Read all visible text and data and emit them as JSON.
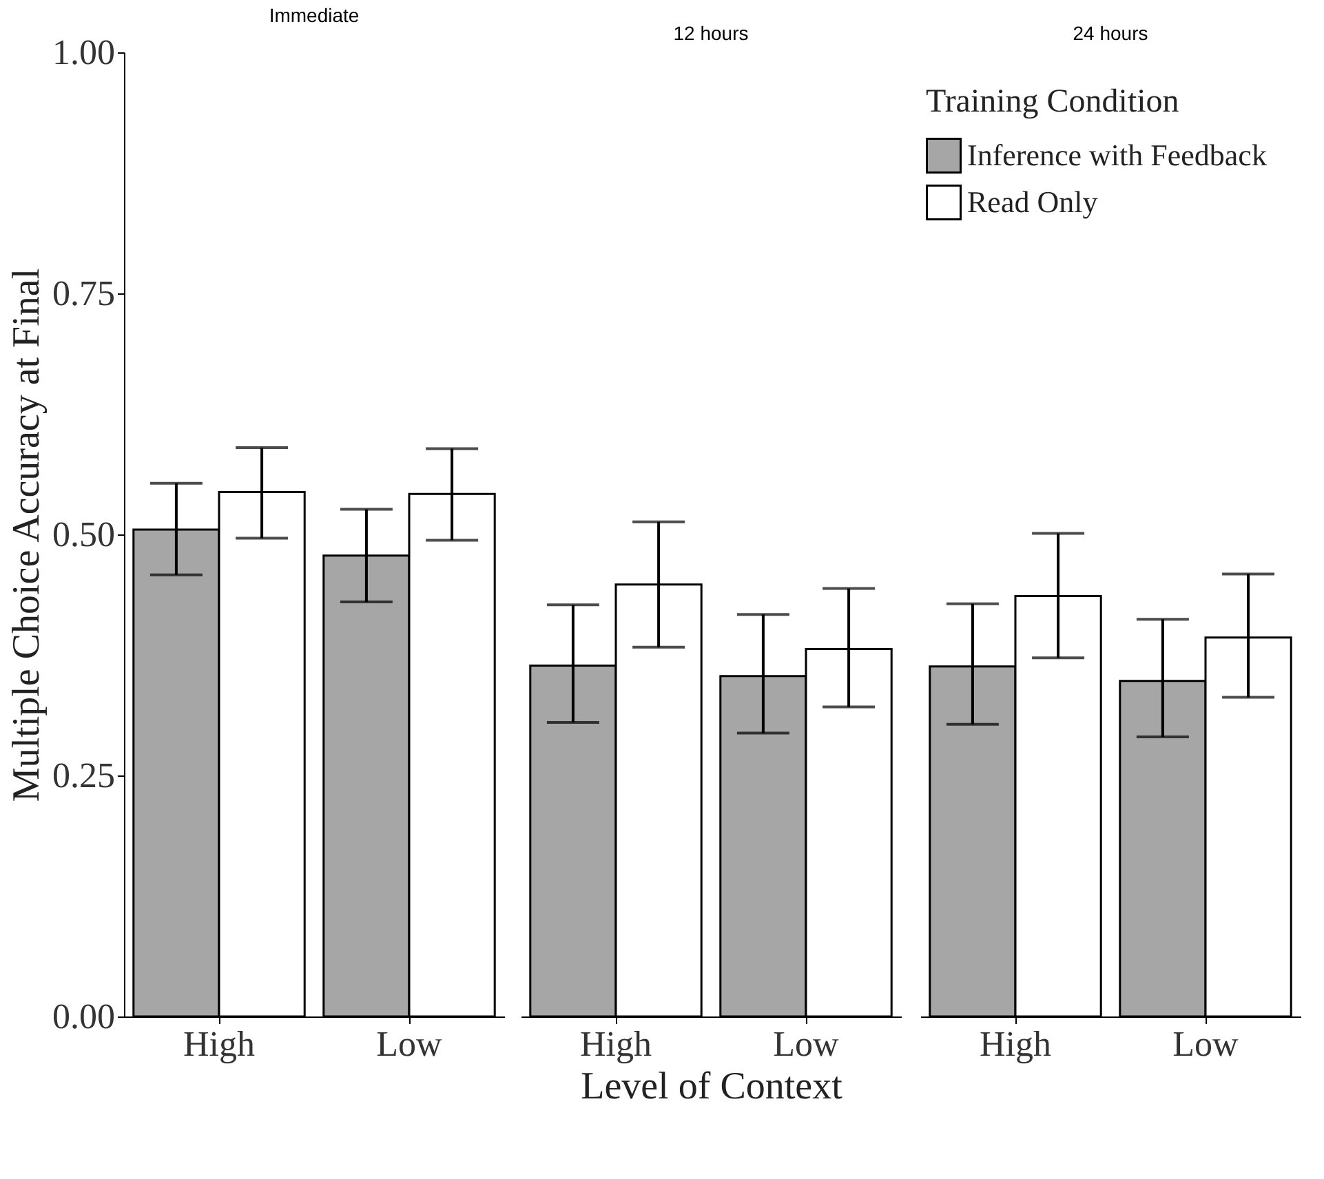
{
  "chart_data": [
    {
      "type": "bar",
      "title": "Immediate",
      "ylabel": "Multiple Choice Accuracy at Final",
      "categories": [
        "High",
        "Low"
      ],
      "ylim": [
        0,
        1
      ],
      "yticks": [
        {
          "value": 0,
          "label": "0.00"
        },
        {
          "value": 0.25,
          "label": "0.25"
        },
        {
          "value": 0.5,
          "label": "0.50"
        },
        {
          "value": 0.75,
          "label": "0.75"
        },
        {
          "value": 1,
          "label": "1.00"
        }
      ],
      "grid": false,
      "tick_labels": true,
      "series": [
        {
          "color": "#a6a6a6",
          "values": [
            0.505,
            0.478
          ],
          "errors": [
            [
              0.458,
              0.553
            ],
            [
              0.43,
              0.526
            ]
          ]
        },
        {
          "color": "#ffffff",
          "values": [
            0.544,
            0.542
          ],
          "errors": [
            [
              0.496,
              0.59
            ],
            [
              0.494,
              0.589
            ]
          ]
        }
      ]
    },
    {
      "type": "bar",
      "title": "12 hours",
      "xlabel": "Level of Context",
      "categories": [
        "High",
        "Low"
      ],
      "ylim": [
        0,
        1
      ],
      "grid": false,
      "tick_labels": "x",
      "series": [
        {
          "color": "#a6a6a6",
          "values": [
            0.364,
            0.353
          ],
          "errors": [
            [
              0.305,
              0.427
            ],
            [
              0.294,
              0.417
            ]
          ]
        },
        {
          "color": "#ffffff",
          "values": [
            0.448,
            0.381
          ],
          "errors": [
            [
              0.383,
              0.513
            ],
            [
              0.321,
              0.444
            ]
          ]
        }
      ]
    },
    {
      "type": "bar",
      "title": "24 hours",
      "legend_title": "Training Condition",
      "categories": [
        "High",
        "Low"
      ],
      "ylim": [
        0,
        1
      ],
      "grid": false,
      "legend": "top right",
      "tick_labels": "x",
      "series": [
        {
          "name": "Inference with Feedback",
          "color": "#a6a6a6",
          "values": [
            0.363,
            0.348
          ],
          "errors": [
            [
              0.303,
              0.428
            ],
            [
              0.29,
              0.412
            ]
          ]
        },
        {
          "name": "Read Only",
          "color": "#ffffff",
          "values": [
            0.436,
            0.393
          ],
          "errors": [
            [
              0.372,
              0.501
            ],
            [
              0.331,
              0.459
            ]
          ]
        }
      ]
    }
  ]
}
